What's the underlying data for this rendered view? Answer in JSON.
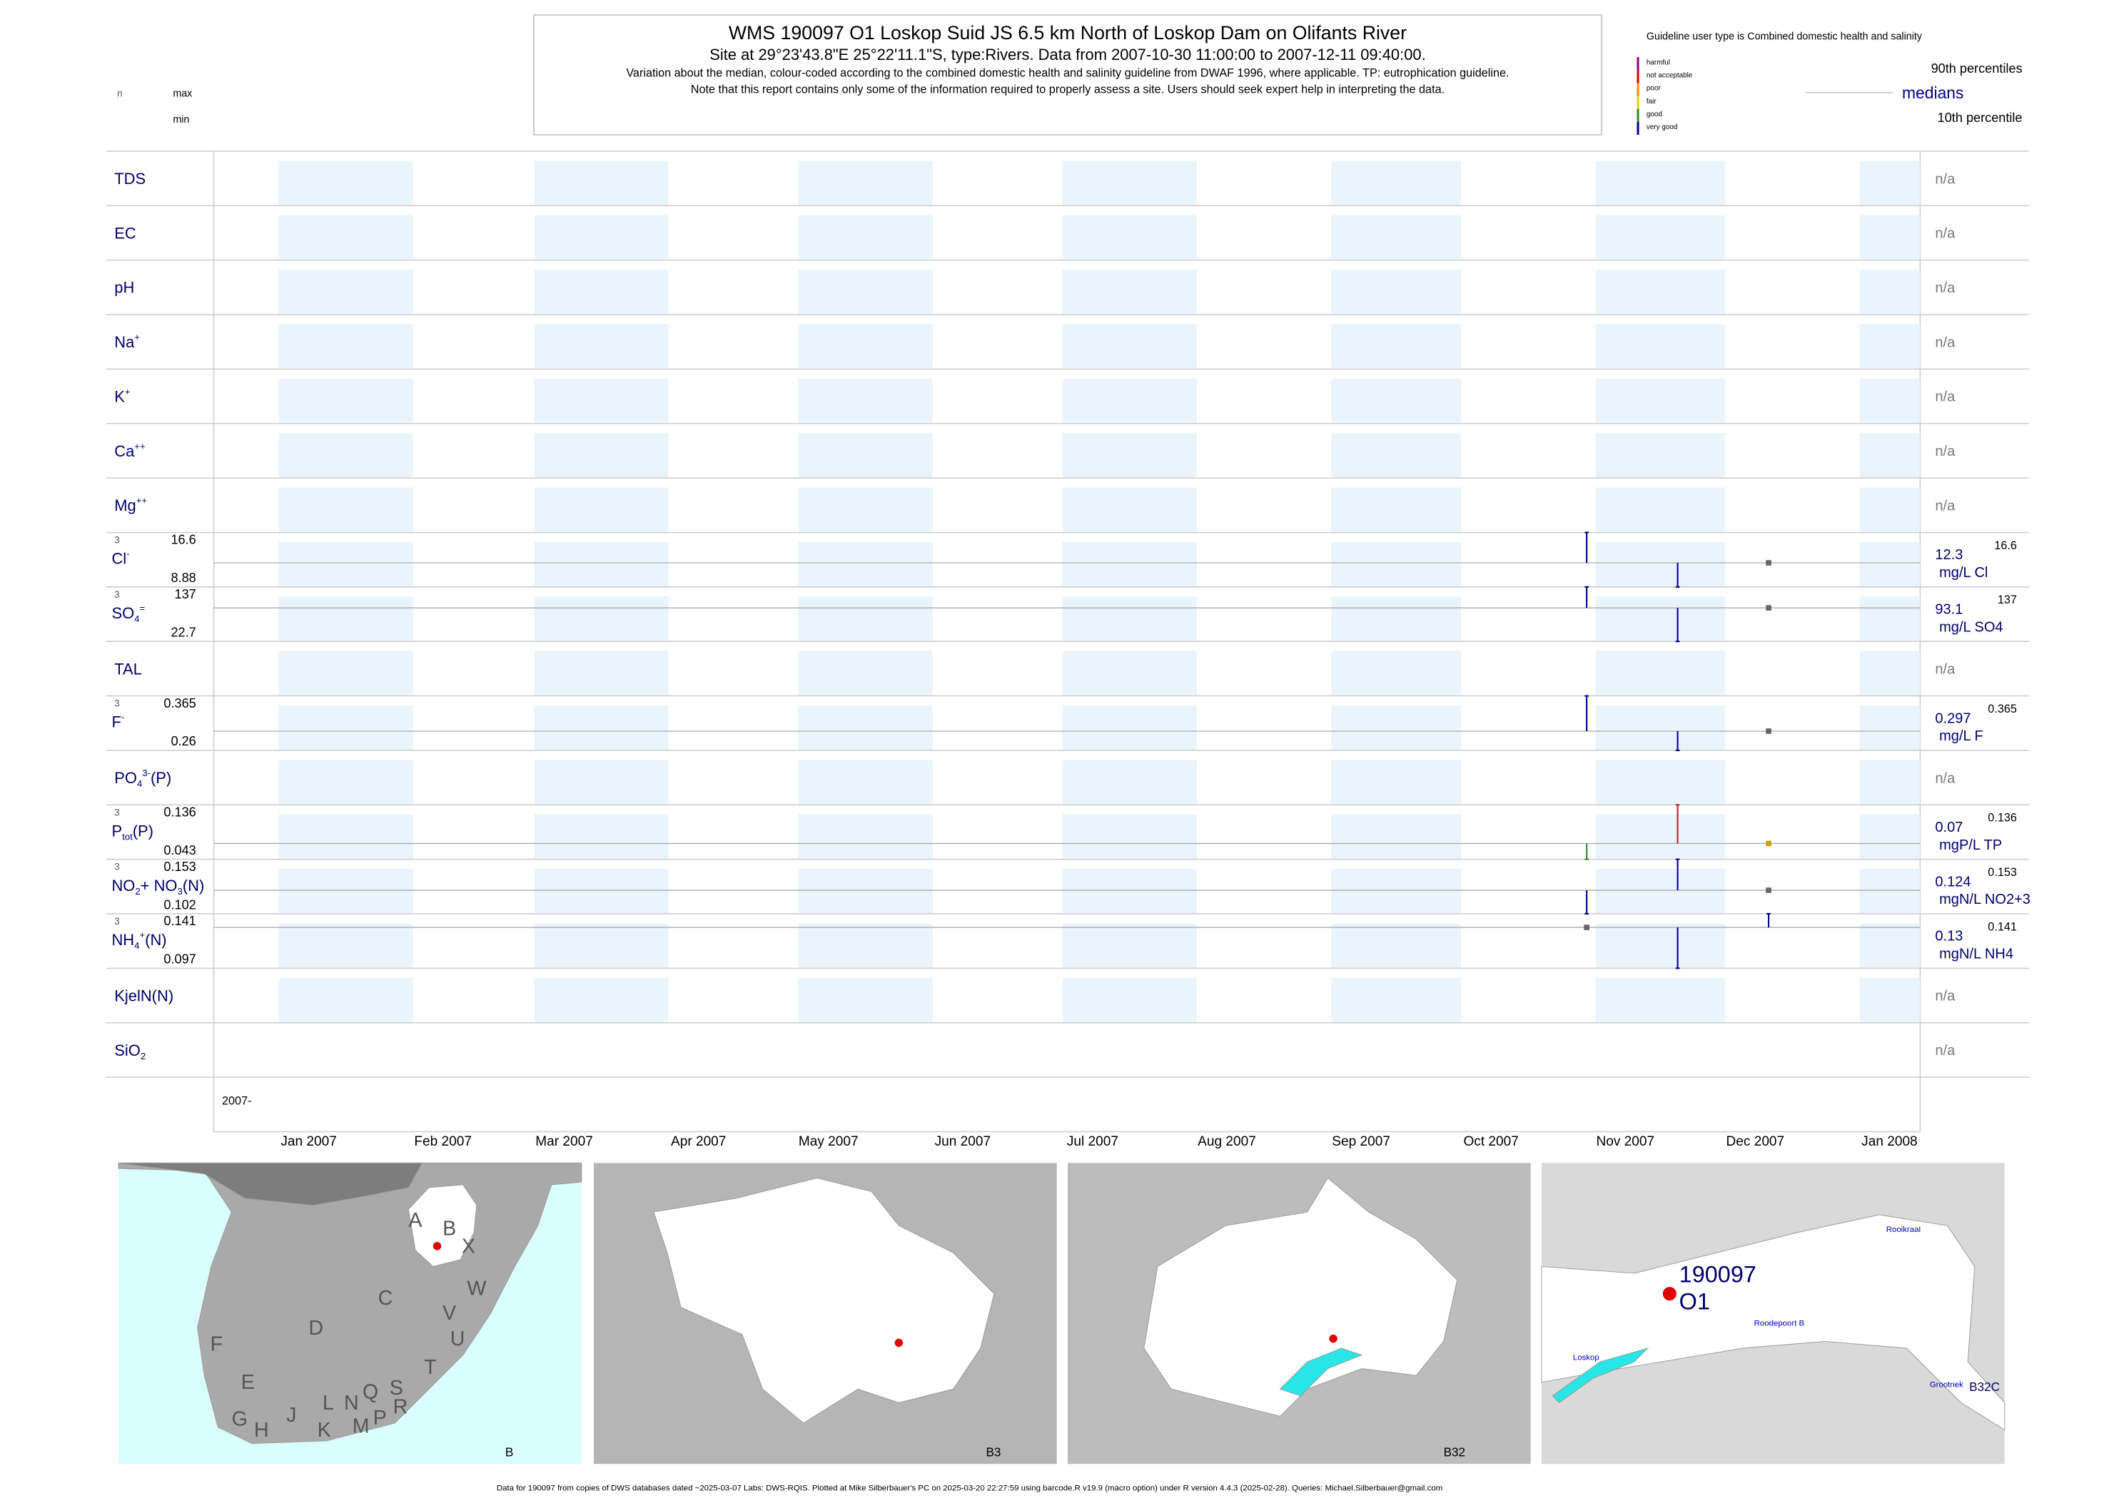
{
  "header": {
    "title": "WMS 190097 O1 Loskop Suid JS 6.5 km North of Loskop Dam on Olifants River",
    "subtitle": "Site at 29°23'43.8\"E 25°22'11.1\"S, type:Rivers.  Data from 2007-10-30 11:00:00 to 2007-12-11 09:40:00.",
    "notes": [
      "Variation about the median,  colour-coded according to the combined domestic health and salinity guideline from DWAF 1996, where applicable. TP: eutrophication guideline.",
      "Note that this report contains only some of the information required to properly assess a site. Users should seek expert help in interpreting the data."
    ]
  },
  "key": {
    "n": "n",
    "max": "max",
    "min": "min"
  },
  "legend": {
    "title": "Guideline user type is Combined domestic health and salinity",
    "classes": [
      {
        "name": "harmful",
        "color": "#8b008b"
      },
      {
        "name": "not acceptable",
        "color": "#e00000"
      },
      {
        "name": "poor",
        "color": "#ff8c00"
      },
      {
        "name": "fair",
        "color": "#e6d200"
      },
      {
        "name": "good",
        "color": "#2e8b2e"
      },
      {
        "name": "very good",
        "color": "#00008b"
      }
    ],
    "p90": "90th percentiles",
    "median": "medians",
    "p10": "10th percentile"
  },
  "chart_data": {
    "type": "strip",
    "sample_dates": [
      "2007-10-30",
      "2007-11-20",
      "2007-12-11"
    ],
    "xlim": [
      "2006-12-17",
      "2008-01-15"
    ],
    "xticks": [
      {
        "value": "2007-01-01",
        "label": "Jan 2007"
      },
      {
        "value": "2007-02-01",
        "label": "Feb 2007"
      },
      {
        "value": "2007-03-01",
        "label": "Mar 2007"
      },
      {
        "value": "2007-04-01",
        "label": "Apr 2007"
      },
      {
        "value": "2007-05-01",
        "label": "May 2007"
      },
      {
        "value": "2007-06-01",
        "label": "Jun 2007"
      },
      {
        "value": "2007-07-01",
        "label": "Jul 2007"
      },
      {
        "value": "2007-08-01",
        "label": "Aug 2007"
      },
      {
        "value": "2007-09-01",
        "label": "Sep 2007"
      },
      {
        "value": "2007-10-01",
        "label": "Oct 2007"
      },
      {
        "value": "2007-11-01",
        "label": "Nov 2007"
      },
      {
        "value": "2007-12-01",
        "label": "Dec 2007"
      },
      {
        "value": "2008-01-01",
        "label": "Jan 2008"
      }
    ],
    "year_label": "2007-",
    "na": "n/a",
    "rows": [
      {
        "label": [
          {
            "text": "TDS"
          }
        ]
      },
      {
        "label": [
          {
            "text": "EC"
          }
        ]
      },
      {
        "label": [
          {
            "text": "pH"
          }
        ]
      },
      {
        "label": [
          {
            "text": "Na"
          },
          {
            "text": "+",
            "pos": "sup"
          }
        ]
      },
      {
        "label": [
          {
            "text": "K"
          },
          {
            "text": "+",
            "pos": "sup"
          }
        ]
      },
      {
        "label": [
          {
            "text": "Ca"
          },
          {
            "text": "++",
            "pos": "sup"
          }
        ]
      },
      {
        "label": [
          {
            "text": "Mg"
          },
          {
            "text": "++",
            "pos": "sup"
          }
        ]
      },
      {
        "label": [
          {
            "text": "Cl"
          },
          {
            "text": "-",
            "pos": "sup"
          }
        ],
        "n": 3,
        "max": 16.6,
        "min": 8.88,
        "median": 12.3,
        "p90": 16.6,
        "unit": "mg/L Cl",
        "values": [
          16.6,
          8.88,
          12.3
        ],
        "colors": [
          "#00008b",
          "#00008b",
          "#666666"
        ]
      },
      {
        "label": [
          {
            "text": "SO"
          },
          {
            "text": "4",
            "pos": "sub"
          },
          {
            "text": "=",
            "pos": "sup"
          }
        ],
        "n": 3,
        "max": 137,
        "min": 22.7,
        "median": 93.1,
        "p90": 137,
        "unit": "mg/L SO4",
        "values": [
          137,
          22.7,
          93.1
        ],
        "colors": [
          "#00008b",
          "#00008b",
          "#666666"
        ]
      },
      {
        "label": [
          {
            "text": "TAL"
          }
        ]
      },
      {
        "label": [
          {
            "text": "F"
          },
          {
            "text": "-",
            "pos": "sup"
          }
        ],
        "n": 3,
        "max": 0.365,
        "min": 0.26,
        "median": 0.297,
        "p90": 0.365,
        "unit": "mg/L F",
        "values": [
          0.365,
          0.26,
          0.297
        ],
        "colors": [
          "#00008b",
          "#00008b",
          "#666666"
        ]
      },
      {
        "label": [
          {
            "text": "PO"
          },
          {
            "text": "4",
            "pos": "sub"
          },
          {
            "text": "3-",
            "pos": "sup"
          },
          {
            "text": "(P)"
          }
        ]
      },
      {
        "label": [
          {
            "text": "P"
          },
          {
            "text": "tot",
            "pos": "sub"
          },
          {
            "text": "(P)"
          }
        ],
        "n": 3,
        "max": 0.136,
        "min": 0.043,
        "median": 0.07,
        "p90": 0.136,
        "unit": "mgP/L TP",
        "values": [
          0.043,
          0.136,
          0.07
        ],
        "colors": [
          "#2e8b2e",
          "#b22222",
          "#c8a000"
        ]
      },
      {
        "label": [
          {
            "text": "NO"
          },
          {
            "text": "2",
            "pos": "sub"
          },
          {
            "text": "+ NO"
          },
          {
            "text": "3",
            "pos": "sub"
          },
          {
            "text": "(N)"
          }
        ],
        "n": 3,
        "max": 0.153,
        "min": 0.102,
        "median": 0.124,
        "p90": 0.153,
        "unit": "mgN/L NO2+3",
        "values": [
          0.102,
          0.153,
          0.124
        ],
        "colors": [
          "#00008b",
          "#00008b",
          "#666666"
        ]
      },
      {
        "label": [
          {
            "text": "NH"
          },
          {
            "text": "4",
            "pos": "sub"
          },
          {
            "text": "+",
            "pos": "sup"
          },
          {
            "text": "(N)"
          }
        ],
        "n": 3,
        "max": 0.141,
        "min": 0.097,
        "median": 0.13,
        "p90": 0.141,
        "unit": "mgN/L NH4",
        "values": [
          0.13,
          0.097,
          0.141
        ],
        "colors": [
          "#666666",
          "#00008b",
          "#00008b"
        ]
      },
      {
        "label": [
          {
            "text": "KjelN(N)"
          }
        ]
      },
      {
        "label": [
          {
            "text": "SiO"
          },
          {
            "text": "2",
            "pos": "sub"
          }
        ]
      }
    ]
  },
  "maps": [
    {
      "caption": "B",
      "labels": [
        "A",
        "B",
        "X",
        "C",
        "W",
        "D",
        "V",
        "U",
        "F",
        "T",
        "E",
        "S",
        "R",
        "Q",
        "P",
        "G",
        "H",
        "J",
        "K",
        "L",
        "N",
        "M"
      ]
    },
    {
      "caption": "B3",
      "labels": []
    },
    {
      "caption": "B32",
      "labels": []
    },
    {
      "caption": "B32C",
      "labels": [
        "190097",
        "O1",
        "Rooikraal",
        "Roodepoort B",
        "Loskop",
        "Grootnek"
      ]
    }
  ],
  "footer": "Data for 190097 from copies of DWS databases dated ~2025-03-07 Labs: DWS-RQIS. Plotted at Mike Silberbauer's PC on 2025-03-20 22:27:59 using barcode.R v19.9 (macro option) under R version 4.4.3 (2025-02-28). Queries: Michael.Silberbauer@gmail.com"
}
